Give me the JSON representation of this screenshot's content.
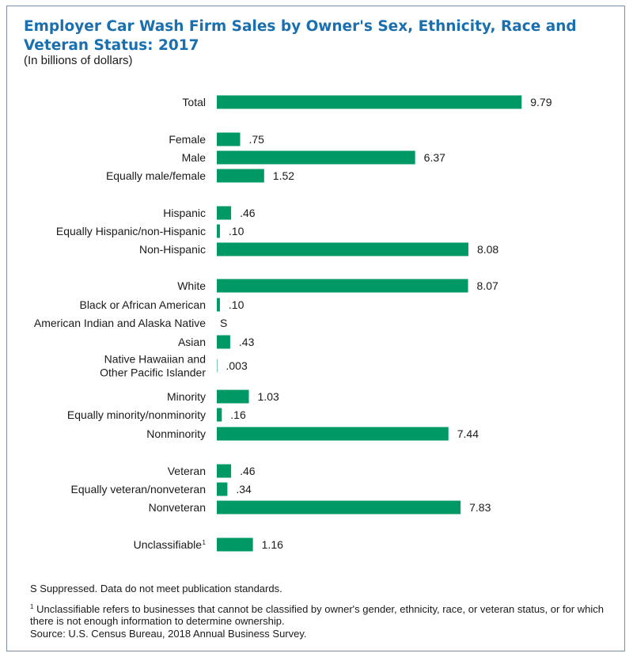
{
  "title": "Employer Car Wash Firm Sales by Owner's Sex, Ethnicity, Race and Veteran Status: 2017",
  "subtitle": "(In billions of dollars)",
  "colors": {
    "bar": "#009966",
    "title": "#1a6faf",
    "border": "#7a8fa6"
  },
  "chart_data": {
    "type": "bar",
    "orientation": "horizontal",
    "title": "Employer Car Wash Firm Sales by Owner's Sex, Ethnicity, Race and Veteran Status: 2017",
    "ylabel": "(In billions of dollars)",
    "xlim": [
      0,
      10.5
    ],
    "grid": false,
    "categories": [
      {
        "label": [
          "Total"
        ],
        "value": 9.79,
        "value_label": "9.79"
      },
      {
        "label": [
          "Female"
        ],
        "value": 0.75,
        "value_label": ".75"
      },
      {
        "label": [
          "Male"
        ],
        "value": 6.37,
        "value_label": "6.37"
      },
      {
        "label": [
          "Equally male/female"
        ],
        "value": 1.52,
        "value_label": "1.52"
      },
      {
        "label": [
          "Hispanic"
        ],
        "value": 0.46,
        "value_label": ".46"
      },
      {
        "label": [
          "Equally Hispanic/non-Hispanic"
        ],
        "value": 0.1,
        "value_label": ".10"
      },
      {
        "label": [
          "Non-Hispanic"
        ],
        "value": 8.08,
        "value_label": "8.08"
      },
      {
        "label": [
          "White"
        ],
        "value": 8.07,
        "value_label": "8.07"
      },
      {
        "label": [
          "Black or African American"
        ],
        "value": 0.1,
        "value_label": ".10"
      },
      {
        "label": [
          "American Indian and Alaska Native"
        ],
        "value": null,
        "value_label": "S"
      },
      {
        "label": [
          "Asian"
        ],
        "value": 0.43,
        "value_label": ".43"
      },
      {
        "label": [
          "Native Hawaiian and",
          "Other Pacific Islander"
        ],
        "value": 0.003,
        "value_label": ".003"
      },
      {
        "label": [
          "Minority"
        ],
        "value": 1.03,
        "value_label": "1.03"
      },
      {
        "label": [
          "Equally minority/nonminority"
        ],
        "value": 0.16,
        "value_label": ".16"
      },
      {
        "label": [
          "Nonminority"
        ],
        "value": 7.44,
        "value_label": "7.44"
      },
      {
        "label": [
          "Veteran"
        ],
        "value": 0.46,
        "value_label": ".46"
      },
      {
        "label": [
          "Equally veteran/nonveteran"
        ],
        "value": 0.34,
        "value_label": ".34"
      },
      {
        "label": [
          "Nonveteran"
        ],
        "value": 7.83,
        "value_label": "7.83"
      },
      {
        "label": [
          "Unclassifiable"
        ],
        "label_superscript": "1",
        "value": 1.16,
        "value_label": "1.16"
      }
    ]
  },
  "footnotes": {
    "suppressed": "S Suppressed. Data do not meet publication standards.",
    "unclassifiable_marker": "1",
    "unclassifiable": "Unclassifiable refers to businesses that cannot be classified by owner's gender, ethnicity, race, or veteran status, or for which there is not enough information to determine ownership.",
    "source": "Source: U.S. Census Bureau, 2018 Annual Business Survey."
  }
}
